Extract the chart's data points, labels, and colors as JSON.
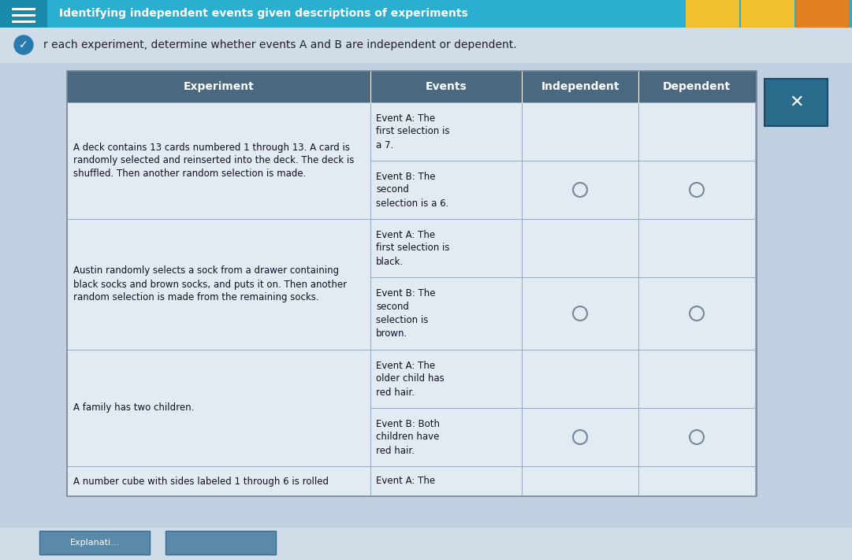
{
  "title_bar_text": "Identifying independent events given descriptions of experiments",
  "subtitle_text": "r each experiment, determine whether events A and B are independent or dependent.",
  "header_bg": "#4a6880",
  "header_text_color": "#ffffff",
  "cell_bg": "#e2eaf2",
  "cell_border_color": "#9aaabb",
  "top_bar_color": "#2aafd0",
  "page_bg": "#c0d0e0",
  "subtitle_bg": "#d0dce8",
  "columns": [
    "Experiment",
    "Events",
    "Independent",
    "Dependent"
  ],
  "rows": [
    {
      "experiment": "A deck contains 13 cards numbered 1 through 13. A card is\nrandomly selected and reinserted into the deck. The deck is\nshuffled. Then another random selection is made.",
      "event_a": "Event A: The\nfirst selection is\na 7.",
      "event_b": "Event B: The\nsecond\nselection is a 6.",
      "has_radio": true
    },
    {
      "experiment": "Austin randomly selects a sock from a drawer containing\nblack socks and brown socks, and puts it on. Then another\nrandom selection is made from the remaining socks.",
      "event_a": "Event A: The\nfirst selection is\nblack.",
      "event_b": "Event B: The\nsecond\nselection is\nbrown.",
      "has_radio": true
    },
    {
      "experiment": "A family has two children.",
      "event_a": "Event A: The\nolder child has\nred hair.",
      "event_b": "Event B: Both\nchildren have\nred hair.",
      "has_radio": true
    },
    {
      "experiment": "A number cube with sides labeled 1 through 6 is rolled",
      "event_a": "Event A: The",
      "event_b": "",
      "has_radio": false
    }
  ],
  "close_button_color": "#2a6a8a",
  "font_family": "DejaVu Sans"
}
